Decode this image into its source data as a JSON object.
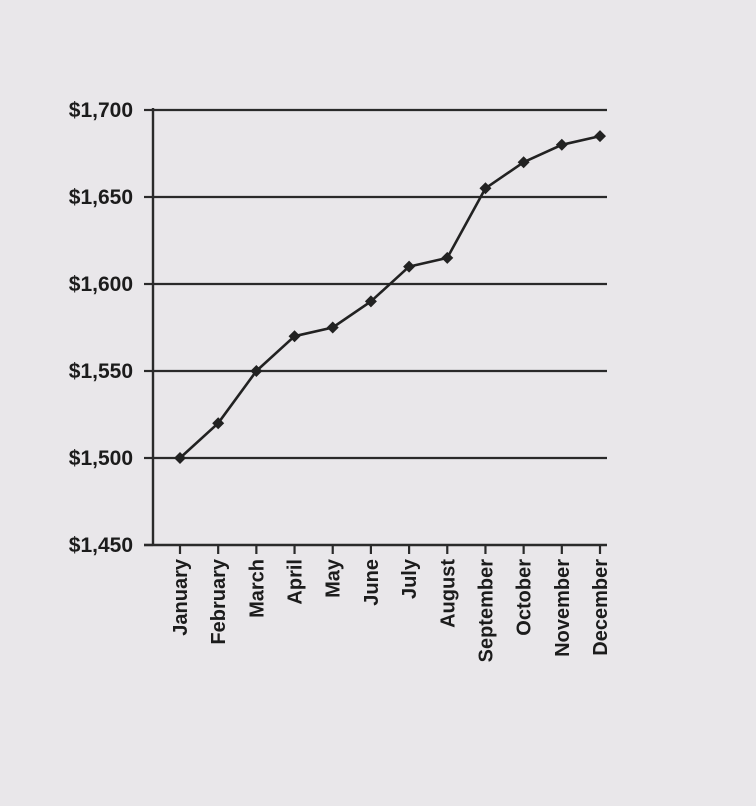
{
  "chart_data": {
    "type": "line",
    "title": "",
    "xlabel": "",
    "ylabel": "",
    "categories": [
      "January",
      "February",
      "March",
      "April",
      "May",
      "June",
      "July",
      "August",
      "September",
      "October",
      "November",
      "December"
    ],
    "series": [
      {
        "values": [
          1500,
          1520,
          1550,
          1570,
          1575,
          1590,
          1610,
          1615,
          1655,
          1670,
          1680,
          1685
        ]
      }
    ],
    "yticks": [
      1450,
      1500,
      1550,
      1600,
      1650,
      1700
    ],
    "ytick_labels": [
      "$1,450",
      "$1,500",
      "$1,550",
      "$1,600",
      "$1,650",
      "$1,700"
    ],
    "ylim": [
      1450,
      1700
    ],
    "grid": true,
    "colors": {
      "line": "#222222",
      "grid": "#2a2a2a",
      "text": "#1c1c1c"
    }
  }
}
